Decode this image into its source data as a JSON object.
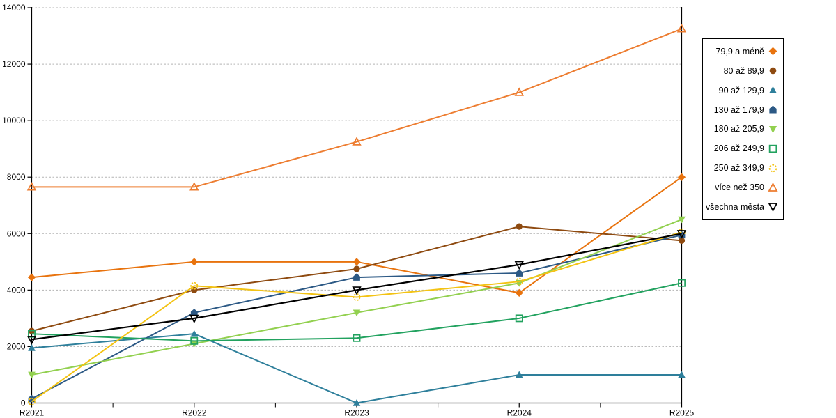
{
  "chart_data": {
    "type": "line",
    "title": "",
    "xlabel": "",
    "ylabel": "",
    "x_categories": [
      "R2021",
      "R2022",
      "R2023",
      "R2024",
      "R2025"
    ],
    "y_ticks": [
      0,
      2000,
      4000,
      6000,
      8000,
      10000,
      12000,
      14000
    ],
    "ylim": [
      0,
      14000
    ],
    "grid": "horizontal-dashed",
    "grid_color": "#b3b3b3",
    "axis_color": "#000000",
    "legend_position": "right",
    "legend_border_color": "#000000",
    "series": [
      {
        "name": "79,9 a méně",
        "color": "#E8730E",
        "marker": "diamond",
        "fill": "filled",
        "outline": "solid",
        "values": [
          4450,
          5000,
          5000,
          3900,
          8000
        ]
      },
      {
        "name": "80 až 89,9",
        "color": "#8E4A10",
        "marker": "circle",
        "fill": "filled",
        "outline": "solid",
        "values": [
          2550,
          4000,
          4750,
          6250,
          5750
        ]
      },
      {
        "name": "90 až 129,9",
        "color": "#2E7F9B",
        "marker": "triangle-up",
        "fill": "filled",
        "outline": "solid",
        "values": [
          1950,
          2450,
          0,
          1000,
          1000
        ]
      },
      {
        "name": "130 až 179,9",
        "color": "#2C5985",
        "marker": "pentagon",
        "fill": "filled",
        "outline": "solid",
        "values": [
          150,
          3200,
          4450,
          4600,
          5950
        ]
      },
      {
        "name": "180 až 205,9",
        "color": "#92D04F",
        "marker": "triangle-down",
        "fill": "filled",
        "outline": "solid",
        "values": [
          1000,
          2100,
          3200,
          4250,
          6500
        ]
      },
      {
        "name": "206 až 249,9",
        "color": "#22A25F",
        "marker": "square",
        "fill": "open",
        "outline": "solid",
        "values": [
          2450,
          2200,
          2300,
          3000,
          4250
        ]
      },
      {
        "name": "250 až 349,9",
        "color": "#F3C314",
        "marker": "circle",
        "fill": "open",
        "outline": "dashed",
        "values": [
          50,
          4150,
          3750,
          4300,
          6050
        ]
      },
      {
        "name": "více než 350",
        "color": "#ED7D31",
        "marker": "triangle-up",
        "fill": "open",
        "outline": "solid",
        "values": [
          7650,
          7650,
          9250,
          11000,
          13250
        ]
      },
      {
        "name": "všechna města",
        "color": "#000000",
        "marker": "triangle-down",
        "fill": "open",
        "outline": "solid",
        "values": [
          2250,
          3000,
          4000,
          4900,
          6000
        ]
      }
    ]
  }
}
